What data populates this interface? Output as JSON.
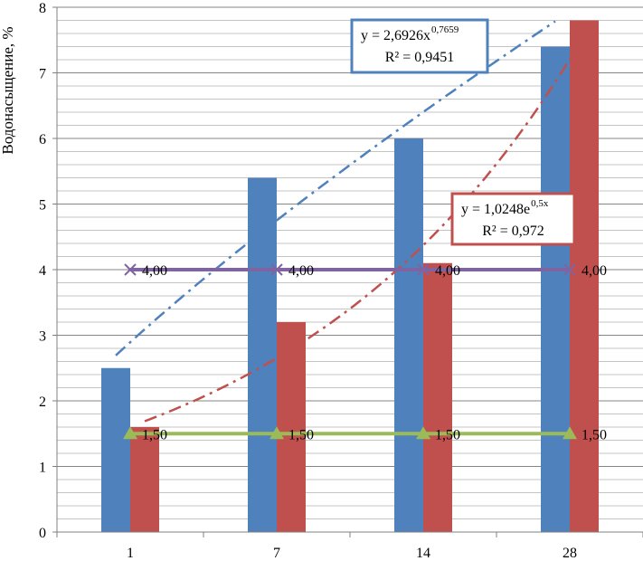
{
  "chart_data": {
    "type": "bar",
    "categories": [
      "1",
      "7",
      "14",
      "28"
    ],
    "series": [
      {
        "values": [
          2.5,
          5.4,
          6.0,
          7.4
        ],
        "color": "#4f81bd"
      },
      {
        "values": [
          1.6,
          3.2,
          4.1,
          7.8
        ],
        "color": "#c0504d"
      }
    ],
    "reference_lines": [
      {
        "values": [
          4.0,
          4.0,
          4.0,
          4.0
        ],
        "labels": [
          "4,00",
          "4,00",
          "4,00",
          "4,00"
        ],
        "color": "#8064a2",
        "marker": "x"
      },
      {
        "values": [
          1.5,
          1.5,
          1.5,
          1.5
        ],
        "labels": [
          "1,50",
          "1,50",
          "1,50",
          "1,50"
        ],
        "color": "#9bbb59",
        "marker": "triangle"
      }
    ],
    "trendlines": [
      {
        "kind": "power",
        "series_index": 0,
        "a": 2.6926,
        "b": 0.7659,
        "color": "#4f81bd",
        "equation_base": "y = 2,6926x",
        "equation_exp": "0,7659",
        "r2_text": "R² = 0,9451",
        "box_color": "#4f81bd"
      },
      {
        "kind": "exponential",
        "series_index": 1,
        "a": 1.0248,
        "b": 0.5,
        "color": "#c0504d",
        "equation_base": "y = 1,0248e",
        "equation_exp": "0,5x",
        "r2_text": "R² = 0,972",
        "box_color": "#c0504d"
      }
    ],
    "ylabel": "Водонасыщение, %",
    "xlabel": "",
    "ylim": [
      0,
      8
    ],
    "y_major_step": 1,
    "y_minor_step": 0.2,
    "grid": true
  }
}
